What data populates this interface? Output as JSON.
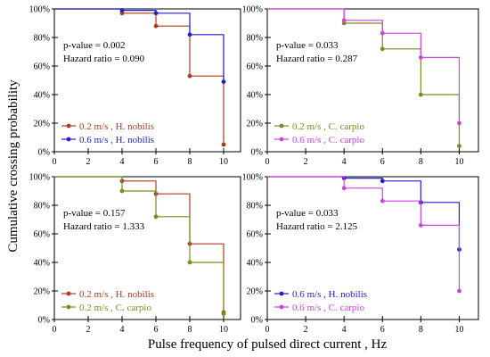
{
  "figure": {
    "ylabel": "Cumulative crossing probability",
    "xlabel": "Pulse frequency of pulsed direct current , Hz"
  },
  "colors": {
    "hn_02": "#b03a1e",
    "hn_06": "#1f1fd0",
    "cc_02": "#7d8a1e",
    "cc_06": "#cc44dd"
  },
  "chart_data": [
    {
      "type": "line",
      "step": true,
      "panel": "top-left",
      "xlim": [
        0,
        11
      ],
      "ylim": [
        0,
        100
      ],
      "xticks": [
        "0",
        "2",
        "4",
        "6",
        "8",
        "10"
      ],
      "yticks": [
        "0%",
        "20%",
        "40%",
        "60%",
        "80%",
        "100%"
      ],
      "annotations": [
        "p-value = 0.002",
        "Hazard ratio = 0.090"
      ],
      "legend_position": "bottom-left",
      "series": [
        {
          "name": "0.2 m/s , H. nobilis",
          "color_key": "hn_02",
          "x": [
            4,
            6,
            8,
            10
          ],
          "y": [
            97,
            88,
            53,
            5
          ]
        },
        {
          "name": "0.6 m/s , H. nobilis",
          "color_key": "hn_06",
          "x": [
            4,
            6,
            8,
            10
          ],
          "y": [
            99,
            97,
            82,
            49
          ]
        }
      ]
    },
    {
      "type": "line",
      "step": true,
      "panel": "top-right",
      "xlim": [
        0,
        11
      ],
      "ylim": [
        0,
        100
      ],
      "xticks": [
        "0",
        "2",
        "4",
        "6",
        "8",
        "10"
      ],
      "yticks": [
        "0%",
        "20%",
        "40%",
        "60%",
        "80%",
        "100%"
      ],
      "annotations": [
        "p-value = 0.033",
        "Hazard ratio = 0.287"
      ],
      "legend_position": "bottom-left",
      "series": [
        {
          "name": "0.2 m/s , C. carpio",
          "color_key": "cc_02",
          "x": [
            4,
            6,
            8,
            10
          ],
          "y": [
            90,
            72,
            40,
            4
          ]
        },
        {
          "name": "0.6 m/s , C. carpio",
          "color_key": "cc_06",
          "x": [
            4,
            6,
            8,
            10
          ],
          "y": [
            92,
            83,
            66,
            20
          ]
        }
      ]
    },
    {
      "type": "line",
      "step": true,
      "panel": "bottom-left",
      "xlim": [
        0,
        11
      ],
      "ylim": [
        0,
        100
      ],
      "xticks": [
        "0",
        "2",
        "4",
        "6",
        "8",
        "10"
      ],
      "yticks": [
        "0%",
        "20%",
        "40%",
        "60%",
        "80%",
        "100%"
      ],
      "annotations": [
        "p-value = 0.157",
        "Hazard ratio = 1.333"
      ],
      "legend_position": "bottom-left",
      "series": [
        {
          "name": "0.2 m/s , H. nobilis",
          "color_key": "hn_02",
          "x": [
            4,
            6,
            8,
            10
          ],
          "y": [
            97,
            88,
            53,
            5
          ]
        },
        {
          "name": "0.2 m/s , C. carpio",
          "color_key": "cc_02",
          "x": [
            4,
            6,
            8,
            10
          ],
          "y": [
            90,
            72,
            40,
            4
          ]
        }
      ]
    },
    {
      "type": "line",
      "step": true,
      "panel": "bottom-right",
      "xlim": [
        0,
        11
      ],
      "ylim": [
        0,
        100
      ],
      "xticks": [
        "0",
        "2",
        "4",
        "6",
        "8",
        "10"
      ],
      "yticks": [
        "0%",
        "20%",
        "40%",
        "60%",
        "80%",
        "100%"
      ],
      "annotations": [
        "p-value = 0.033",
        "Hazard ratio = 2.125"
      ],
      "legend_position": "bottom-left",
      "series": [
        {
          "name": "0.6 m/s , H. nobilis",
          "color_key": "hn_06",
          "x": [
            4,
            6,
            8,
            10
          ],
          "y": [
            99,
            97,
            82,
            49
          ]
        },
        {
          "name": "0.6 m/s , C. carpio",
          "color_key": "cc_06",
          "x": [
            4,
            6,
            8,
            10
          ],
          "y": [
            92,
            83,
            66,
            20
          ]
        }
      ]
    }
  ]
}
